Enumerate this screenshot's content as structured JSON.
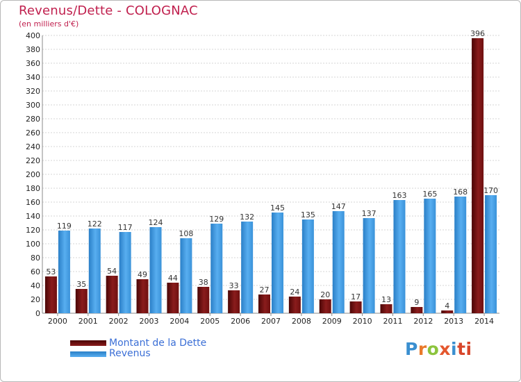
{
  "chart_data": {
    "type": "bar",
    "title": "Revenus/Dette - COLOGNAC",
    "subtitle": "(en milliers d'€)",
    "categories": [
      "2000",
      "2001",
      "2002",
      "2003",
      "2004",
      "2005",
      "2006",
      "2007",
      "2008",
      "2009",
      "2010",
      "2011",
      "2012",
      "2013",
      "2014"
    ],
    "series": [
      {
        "name": "Montant de la Dette",
        "color": "#7a1414",
        "values": [
          53,
          35,
          54,
          49,
          44,
          38,
          33,
          27,
          24,
          20,
          17,
          13,
          9,
          4,
          396
        ]
      },
      {
        "name": "Revenus",
        "color": "#3d9ae0",
        "values": [
          119,
          122,
          117,
          124,
          108,
          129,
          132,
          145,
          135,
          147,
          137,
          163,
          165,
          168,
          170
        ]
      }
    ],
    "ylim": [
      0,
      400
    ],
    "yticks": [
      0,
      20,
      40,
      60,
      80,
      100,
      120,
      140,
      160,
      180,
      200,
      220,
      240,
      260,
      280,
      300,
      320,
      340,
      360,
      380,
      400
    ],
    "grid": true,
    "legend": "bottom-left"
  },
  "brand": [
    "P",
    "r",
    "o",
    "x",
    "i",
    "ti"
  ]
}
